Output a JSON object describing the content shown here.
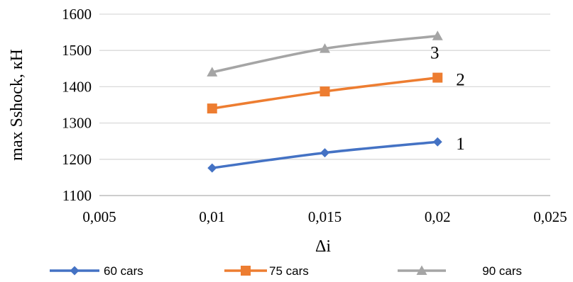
{
  "chart_data": {
    "type": "line",
    "xlabel": "Δi",
    "ylabel": "max Sshock, кН",
    "xlim": [
      0.005,
      0.025
    ],
    "ylim": [
      1100,
      1600
    ],
    "x_ticks": [
      "0,005",
      "0,01",
      "0,015",
      "0,02",
      "0,025"
    ],
    "y_ticks": [
      "1100",
      "1200",
      "1300",
      "1400",
      "1500",
      "1600"
    ],
    "grid": "horizontal",
    "legend_position": "bottom",
    "series": [
      {
        "name": "60 cars",
        "curve_label": "1",
        "color": "#4472C4",
        "marker": "diamond",
        "x": [
          0.01,
          0.015,
          0.02
        ],
        "values": [
          1176,
          1218,
          1248
        ]
      },
      {
        "name": "75 cars",
        "curve_label": "2",
        "color": "#ED7D31",
        "marker": "square",
        "x": [
          0.01,
          0.015,
          0.02
        ],
        "values": [
          1340,
          1387,
          1425
        ]
      },
      {
        "name": "90 cars",
        "curve_label": "3",
        "color": "#A5A5A5",
        "marker": "triangle",
        "x": [
          0.01,
          0.015,
          0.02
        ],
        "values": [
          1440,
          1505,
          1540
        ]
      }
    ]
  }
}
